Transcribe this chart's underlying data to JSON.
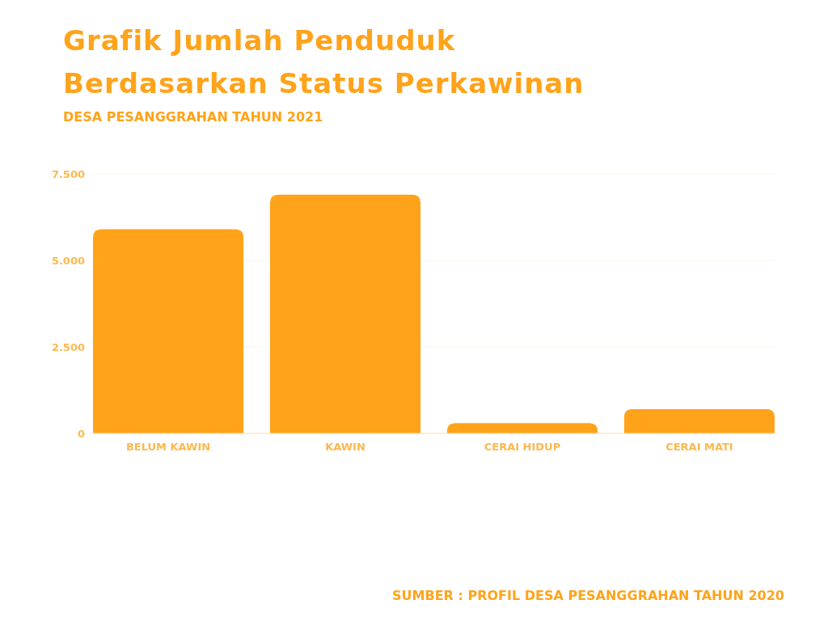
{
  "chart_data": {
    "type": "bar",
    "title": "Grafik Jumlah Penduduk Berdasarkan Status Perkawinan",
    "subtitle": "DESA PESANGGRAHAN TAHUN 2021",
    "categories": [
      "BELUM KAWIN",
      "KAWIN",
      "CERAI HIDUP",
      "CERAI MATI"
    ],
    "values": [
      5900,
      6900,
      300,
      700
    ],
    "color": "#ffa31a",
    "ylim": [
      0,
      7500
    ],
    "yticks": [
      {
        "value": 0,
        "label": "0"
      },
      {
        "value": 2500,
        "label": "2.500"
      },
      {
        "value": 5000,
        "label": "5.000"
      },
      {
        "value": 7500,
        "label": "7.500"
      }
    ],
    "grid": "y",
    "annotations": [
      "SUMBER : PROFIL DESA PESANGGRAHAN TAHUN 2020"
    ]
  }
}
